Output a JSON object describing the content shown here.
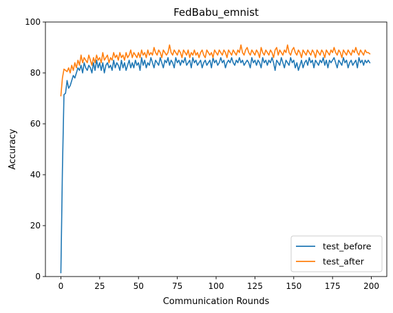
{
  "chart_data": {
    "type": "line",
    "title": "FedBabu_emnist",
    "xlabel": "Communication Rounds",
    "ylabel": "Accuracy",
    "xlim": [
      -9.95,
      209.95
    ],
    "ylim": [
      0,
      100
    ],
    "xticks": [
      0,
      25,
      50,
      75,
      100,
      125,
      150,
      175,
      200
    ],
    "yticks": [
      0,
      20,
      40,
      60,
      80,
      100
    ],
    "grid": false,
    "legend_position": "lower-right",
    "series": [
      {
        "name": "test_before",
        "color": "#1f77b4",
        "x": [
          0,
          1,
          2,
          3,
          4,
          5,
          6,
          7,
          8,
          9,
          10,
          11,
          12,
          13,
          14,
          15,
          16,
          17,
          18,
          19,
          20,
          21,
          22,
          23,
          24,
          25,
          26,
          27,
          28,
          29,
          30,
          31,
          32,
          33,
          34,
          35,
          36,
          37,
          38,
          39,
          40,
          41,
          42,
          43,
          44,
          45,
          46,
          47,
          48,
          49,
          50,
          51,
          52,
          53,
          54,
          55,
          56,
          57,
          58,
          59,
          60,
          61,
          62,
          63,
          64,
          65,
          66,
          67,
          68,
          69,
          70,
          71,
          72,
          73,
          74,
          75,
          76,
          77,
          78,
          79,
          80,
          81,
          82,
          83,
          84,
          85,
          86,
          87,
          88,
          89,
          90,
          91,
          92,
          93,
          94,
          95,
          96,
          97,
          98,
          99,
          100,
          101,
          102,
          103,
          104,
          105,
          106,
          107,
          108,
          109,
          110,
          111,
          112,
          113,
          114,
          115,
          116,
          117,
          118,
          119,
          120,
          121,
          122,
          123,
          124,
          125,
          126,
          127,
          128,
          129,
          130,
          131,
          132,
          133,
          134,
          135,
          136,
          137,
          138,
          139,
          140,
          141,
          142,
          143,
          144,
          145,
          146,
          147,
          148,
          149,
          150,
          151,
          152,
          153,
          154,
          155,
          156,
          157,
          158,
          159,
          160,
          161,
          162,
          163,
          164,
          165,
          166,
          167,
          168,
          169,
          170,
          171,
          172,
          173,
          174,
          175,
          176,
          177,
          178,
          179,
          180,
          181,
          182,
          183,
          184,
          185,
          186,
          187,
          188,
          189,
          190,
          191,
          192,
          193,
          194,
          195,
          196,
          197,
          198,
          199
        ],
        "y": [
          1.5,
          42,
          71.5,
          72,
          77,
          74,
          75,
          77,
          79,
          78,
          80,
          82,
          81,
          83,
          80,
          84,
          82,
          81,
          83,
          82,
          80,
          84,
          81,
          85,
          82,
          84,
          81,
          84,
          80,
          83,
          84,
          82,
          83,
          81,
          85,
          82,
          84,
          83,
          81,
          85,
          82,
          84,
          81,
          83,
          85,
          82,
          84,
          82,
          85,
          83,
          84,
          81,
          86,
          83,
          85,
          82,
          84,
          83,
          86,
          84,
          82,
          85,
          84,
          83,
          86,
          84,
          82,
          85,
          84,
          86,
          83,
          85,
          84,
          82,
          86,
          84,
          85,
          83,
          85,
          84,
          86,
          83,
          84,
          85,
          82,
          86,
          84,
          85,
          83,
          84,
          85,
          82,
          84,
          85,
          83,
          84,
          85,
          82,
          86,
          84,
          85,
          83,
          84,
          86,
          84,
          85,
          82,
          84,
          85,
          84,
          86,
          84,
          83,
          85,
          84,
          86,
          84,
          85,
          83,
          84,
          85,
          84,
          82,
          86,
          84,
          85,
          83,
          85,
          84,
          82,
          86,
          84,
          85,
          83,
          85,
          84,
          86,
          84,
          81,
          85,
          84,
          83,
          86,
          84,
          82,
          85,
          84,
          83,
          86,
          84,
          85,
          82,
          84,
          81,
          83,
          85,
          82,
          84,
          85,
          83,
          86,
          84,
          85,
          82,
          85,
          84,
          83,
          85,
          84,
          86,
          83,
          85,
          82,
          85,
          84,
          85,
          86,
          84,
          82,
          85,
          84,
          83,
          86,
          84,
          85,
          82,
          84,
          85,
          83,
          84,
          85,
          82,
          86,
          84,
          85,
          83,
          85,
          84,
          85,
          84
        ]
      },
      {
        "name": "test_after",
        "color": "#ff7f0e",
        "x": [
          0,
          1,
          2,
          3,
          4,
          5,
          6,
          7,
          8,
          9,
          10,
          11,
          12,
          13,
          14,
          15,
          16,
          17,
          18,
          19,
          20,
          21,
          22,
          23,
          24,
          25,
          26,
          27,
          28,
          29,
          30,
          31,
          32,
          33,
          34,
          35,
          36,
          37,
          38,
          39,
          40,
          41,
          42,
          43,
          44,
          45,
          46,
          47,
          48,
          49,
          50,
          51,
          52,
          53,
          54,
          55,
          56,
          57,
          58,
          59,
          60,
          61,
          62,
          63,
          64,
          65,
          66,
          67,
          68,
          69,
          70,
          71,
          72,
          73,
          74,
          75,
          76,
          77,
          78,
          79,
          80,
          81,
          82,
          83,
          84,
          85,
          86,
          87,
          88,
          89,
          90,
          91,
          92,
          93,
          94,
          95,
          96,
          97,
          98,
          99,
          100,
          101,
          102,
          103,
          104,
          105,
          106,
          107,
          108,
          109,
          110,
          111,
          112,
          113,
          114,
          115,
          116,
          117,
          118,
          119,
          120,
          121,
          122,
          123,
          124,
          125,
          126,
          127,
          128,
          129,
          130,
          131,
          132,
          133,
          134,
          135,
          136,
          137,
          138,
          139,
          140,
          141,
          142,
          143,
          144,
          145,
          146,
          147,
          148,
          149,
          150,
          151,
          152,
          153,
          154,
          155,
          156,
          157,
          158,
          159,
          160,
          161,
          162,
          163,
          164,
          165,
          166,
          167,
          168,
          169,
          170,
          171,
          172,
          173,
          174,
          175,
          176,
          177,
          178,
          179,
          180,
          181,
          182,
          183,
          184,
          185,
          186,
          187,
          188,
          189,
          190,
          191,
          192,
          193,
          194,
          195,
          196,
          197,
          198,
          199
        ],
        "y": [
          71,
          78,
          81.5,
          81,
          80.5,
          82,
          80,
          83,
          81,
          84,
          82,
          85,
          83,
          87,
          84,
          86,
          85,
          84,
          87,
          85,
          83,
          86,
          84,
          87,
          85,
          86,
          84,
          88,
          85,
          86,
          87,
          84,
          86,
          85,
          88,
          86,
          87,
          85,
          88,
          86,
          87,
          85,
          88,
          86,
          87,
          89,
          86,
          88,
          87,
          86,
          88,
          86,
          89,
          87,
          88,
          86,
          89,
          87,
          88,
          87,
          90,
          88,
          87,
          89,
          88,
          86,
          89,
          88,
          87,
          88,
          91,
          88,
          87,
          89,
          88,
          87,
          89,
          88,
          86,
          89,
          88,
          87,
          89,
          86,
          88,
          87,
          89,
          87,
          88,
          86,
          88,
          89,
          87,
          86,
          89,
          88,
          87,
          88,
          86,
          89,
          88,
          87,
          89,
          88,
          87,
          89,
          88,
          86,
          89,
          88,
          87,
          89,
          88,
          87,
          89,
          88,
          91,
          88,
          87,
          89,
          90,
          88,
          87,
          89,
          88,
          87,
          89,
          88,
          86,
          90,
          88,
          87,
          89,
          88,
          87,
          89,
          88,
          86,
          89,
          90,
          87,
          89,
          88,
          87,
          89,
          88,
          91,
          88,
          87,
          89,
          90,
          88,
          87,
          89,
          88,
          86,
          89,
          88,
          87,
          89,
          88,
          87,
          89,
          88,
          86,
          89,
          88,
          87,
          89,
          88,
          86,
          89,
          88,
          87,
          89,
          88,
          90,
          88,
          87,
          89,
          88,
          86,
          89,
          88,
          87,
          89,
          88,
          87,
          89,
          88,
          90,
          88,
          87,
          89,
          88,
          87,
          89,
          88,
          88,
          87.5
        ]
      }
    ]
  }
}
